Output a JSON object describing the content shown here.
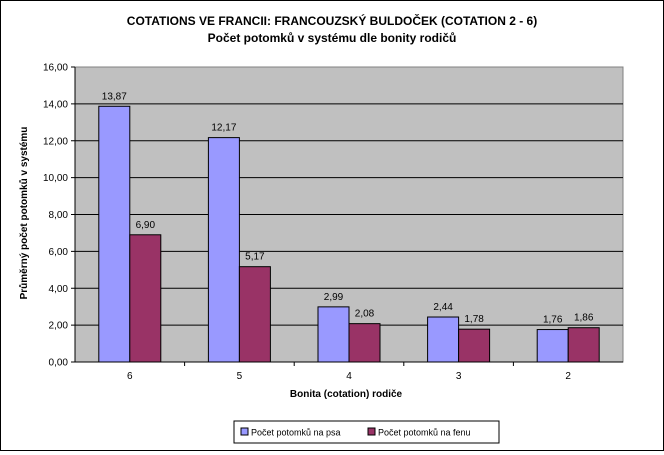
{
  "chart_data": {
    "type": "bar",
    "title": "COTATIONS VE FRANCII: FRANCOUZSKÝ  BULDOČEK  (COTATION 2 - 6)",
    "subtitle": "Počet potomků v systému  dle bonity rodičů",
    "xlabel": "Bonita (cotation) rodiče",
    "ylabel": "Průměrný počet potomků v systému",
    "categories": [
      "6",
      "5",
      "4",
      "3",
      "2"
    ],
    "ylim": [
      0,
      16
    ],
    "yticks": [
      "0,00",
      "2,00",
      "4,00",
      "6,00",
      "8,00",
      "10,00",
      "12,00",
      "14,00",
      "16,00"
    ],
    "grid": true,
    "legend_position": "bottom",
    "series": [
      {
        "name": "Počet potomků na psa",
        "values": [
          13.87,
          12.17,
          2.99,
          2.44,
          1.76
        ],
        "labels": [
          "13,87",
          "12,17",
          "2,99",
          "2,44",
          "1,76"
        ],
        "color": "#9999FF"
      },
      {
        "name": "Počet potomků na fenu",
        "values": [
          6.9,
          5.17,
          2.08,
          1.78,
          1.86
        ],
        "labels": [
          "6,90",
          "5,17",
          "2,08",
          "1,78",
          "1,86"
        ],
        "color": "#993366"
      }
    ],
    "plot_background": "#C0C0C0"
  }
}
